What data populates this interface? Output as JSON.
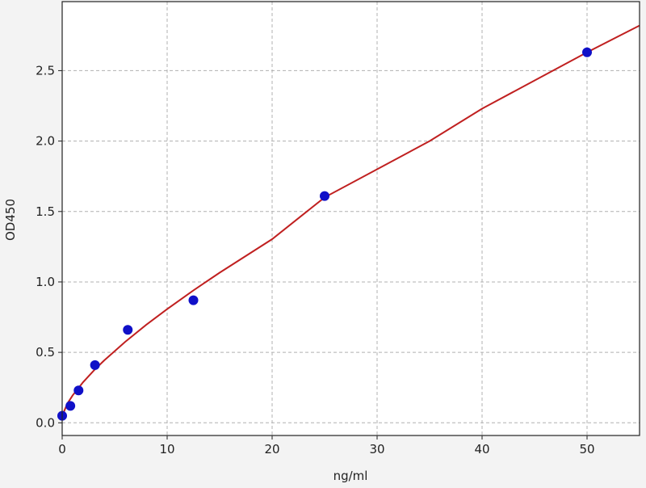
{
  "chart_data": {
    "type": "scatter",
    "title": "",
    "xlabel": "ng/ml",
    "ylabel": "OD450",
    "xlim": [
      0,
      55
    ],
    "ylim": [
      -0.09,
      2.99
    ],
    "xticks": [
      0,
      10,
      20,
      30,
      40,
      50
    ],
    "xtick_labels": [
      "0",
      "10",
      "20",
      "30",
      "40",
      "50"
    ],
    "yticks": [
      0.0,
      0.5,
      1.0,
      1.5,
      2.0,
      2.5
    ],
    "ytick_labels": [
      "0.0",
      "0.5",
      "1.0",
      "1.5",
      "2.0",
      "2.5"
    ],
    "grid": true,
    "series": [
      {
        "type": "scatter",
        "color": "#1010c8",
        "x": [
          0,
          0.78,
          1.56,
          3.125,
          6.25,
          12.5,
          25,
          50
        ],
        "y": [
          0.05,
          0.12,
          0.23,
          0.41,
          0.66,
          0.87,
          1.61,
          2.63
        ]
      },
      {
        "type": "line",
        "color": "#c02020",
        "x": [
          0,
          0.5,
          1,
          2,
          3,
          4,
          6,
          8,
          10,
          12.5,
          15,
          20,
          25,
          30,
          35,
          40,
          45,
          50,
          55
        ],
        "y": [
          0.05,
          0.137,
          0.195,
          0.289,
          0.37,
          0.443,
          0.575,
          0.695,
          0.807,
          0.94,
          1.066,
          1.304,
          1.6,
          1.8,
          2.0,
          2.23,
          2.43,
          2.63,
          2.82
        ]
      }
    ]
  }
}
